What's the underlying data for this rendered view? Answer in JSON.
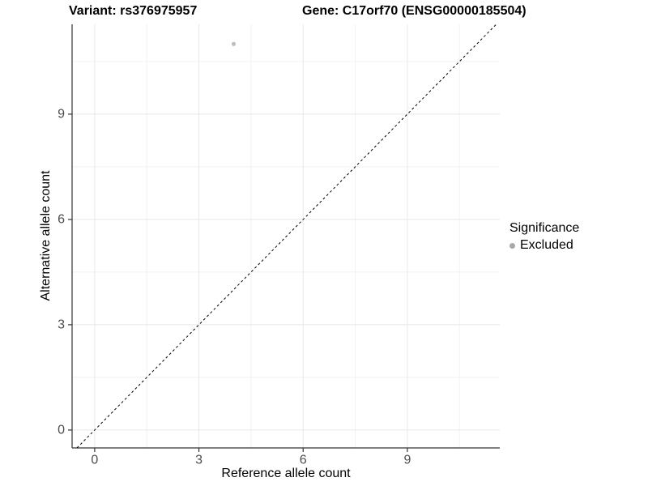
{
  "chart_data": {
    "type": "scatter",
    "titles": {
      "left": "Variant: rs376975957",
      "right": "Gene: C17orf70 (ENSG00000185504)"
    },
    "xlabel": "Reference allele count",
    "ylabel": "Alternative allele count",
    "x_ticks": [
      0,
      3,
      6,
      9
    ],
    "y_ticks": [
      0,
      3,
      6,
      9
    ],
    "xlim": [
      -0.65,
      11.66
    ],
    "ylim": [
      -0.51,
      11.56
    ],
    "grid": {
      "major": true,
      "minor": true,
      "minor_offset": 1.5
    },
    "identity_line": {
      "intercept": 0,
      "slope": 1,
      "style": "dashed"
    },
    "points": [
      {
        "x": 4,
        "y": 11,
        "significance": "Excluded"
      }
    ],
    "legend": {
      "title": "Significance",
      "position": "right",
      "items": [
        {
          "label": "Excluded",
          "color": "#a8a8a8"
        }
      ]
    },
    "colors": {
      "point": "#c0c0c0",
      "grid_major": "#e8e8e8",
      "grid_minor": "#f3f3f3",
      "axis_line": "#333333",
      "tick_mark": "#333333",
      "tick_label": "#4d4d4d",
      "identity_line": "#000000",
      "background": "#ffffff"
    }
  }
}
